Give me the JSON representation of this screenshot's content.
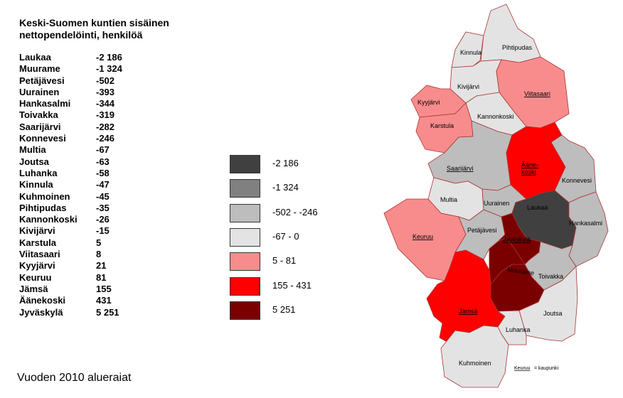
{
  "title": "Keski-Suomen kuntien sisäinen nettopendelöinti, henkilöä",
  "table": [
    {
      "name": "Laukaa",
      "value": "-2 186"
    },
    {
      "name": "Muurame",
      "value": "-1 324"
    },
    {
      "name": "Petäjävesi",
      "value": "-502"
    },
    {
      "name": "Uurainen",
      "value": "-393"
    },
    {
      "name": "Hankasalmi",
      "value": "-344"
    },
    {
      "name": "Toivakka",
      "value": "-319"
    },
    {
      "name": "Saarijärvi",
      "value": "-282"
    },
    {
      "name": "Konnevesi",
      "value": "-246"
    },
    {
      "name": "Multia",
      "value": "-67"
    },
    {
      "name": "Joutsa",
      "value": "-63"
    },
    {
      "name": "Luhanka",
      "value": "-58"
    },
    {
      "name": "Kinnula",
      "value": "-47"
    },
    {
      "name": "Kuhmoinen",
      "value": "-45"
    },
    {
      "name": "Pihtipudas",
      "value": "-35"
    },
    {
      "name": "Kannonkoski",
      "value": "-26"
    },
    {
      "name": "Kivijärvi",
      "value": "-15"
    },
    {
      "name": "Karstula",
      "value": "5"
    },
    {
      "name": "Viitasaari",
      "value": "8"
    },
    {
      "name": "Kyyjärvi",
      "value": "21"
    },
    {
      "name": "Keuruu",
      "value": "81"
    },
    {
      "name": "Jämsä",
      "value": "155"
    },
    {
      "name": "Äänekoski",
      "value": "431"
    },
    {
      "name": "Jyväskylä",
      "value": "5 251"
    }
  ],
  "legend": [
    {
      "label": "-2 186",
      "color": "#404040"
    },
    {
      "label": "-1 324",
      "color": "#808080"
    },
    {
      "label": "-502 - -246",
      "color": "#bdbdbd"
    },
    {
      "label": "-67 - 0",
      "color": "#e3e3e3"
    },
    {
      "label": "5 - 81",
      "color": "#f88c8c"
    },
    {
      "label": "155 - 431",
      "color": "#ff0000"
    },
    {
      "label": "5 251",
      "color": "#7a0000"
    }
  ],
  "map_labels": {
    "kinnula": "Kinnula",
    "pihtipudas": "Pihtipudas",
    "kivijarvi": "Kivijärvi",
    "viitasaari": "Viitasaari",
    "kyyjarvi": "Kyyjärvi",
    "kannonkoski": "Kannonkoski",
    "karstula": "Karstula",
    "aanekoski_1": "Ääne-",
    "aanekoski_2": "koski",
    "saarijarvi": "Saarijärvi",
    "konnevesi": "Konnevesi",
    "multia": "Multia",
    "uurainen": "Uurainen",
    "laukaa": "Laukaa",
    "hankasalmi": "Hankasalmi",
    "keuruu": "Keuruu",
    "petajavesi": "Petäjävesi",
    "jyvaskyla": "Jyväskylä",
    "muurame": "Muurame",
    "toivakka": "Toivakka",
    "jamsa": "Jämsä",
    "joutsa": "Joutsa",
    "luhanka": "Luhanka",
    "kuhmoinen": "Kuhmoinen"
  },
  "map_legend": {
    "city": "Keuruu",
    "desc": "= kaupunki"
  },
  "footer": "Vuoden 2010 alueraiat"
}
